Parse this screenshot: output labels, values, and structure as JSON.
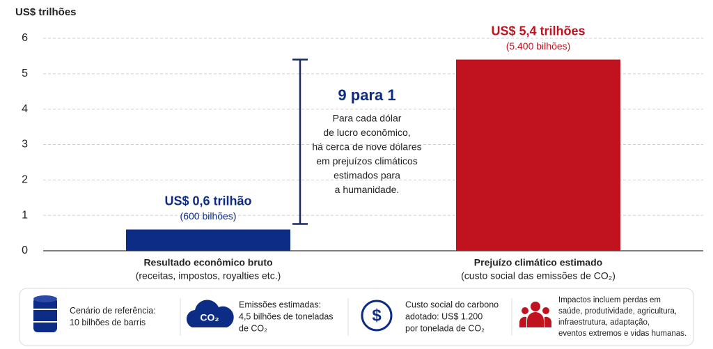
{
  "chart_data": {
    "type": "bar",
    "y_label": "US$ trilhões",
    "categories": [
      "Resultado econômico bruto",
      "Prejuízo climático estimado"
    ],
    "category_notes": [
      "(receitas, impostos, royalties etc.)",
      "(custo social das emissões de CO₂)"
    ],
    "values": [
      0.6,
      5.4
    ],
    "value_labels": [
      "US$ 0,6 trilhão",
      "US$ 5,4 trilhões"
    ],
    "value_sublabels": [
      "(600 bilhões)",
      "(5.400 bilhões)"
    ],
    "colors": [
      "#0d2c85",
      "#c1121f"
    ],
    "ylim": [
      0,
      6
    ],
    "yticks": [
      0,
      1,
      2,
      3,
      4,
      5,
      6
    ],
    "grid": true,
    "annotation": {
      "title": "9 para 1",
      "lines": [
        "Para cada dólar",
        "de lucro econômico,",
        "há cerca de nove dólares",
        "em prejuízos climáticos",
        "estimados para",
        "a humanidade."
      ]
    }
  },
  "footer": {
    "items": [
      {
        "lines": [
          "Cenário de referência:",
          "10 bilhões de barris"
        ]
      },
      {
        "icon_text": "CO₂",
        "lines": [
          "Emissões estimadas:",
          "4,5 bilhões de toneladas",
          "de CO₂"
        ]
      },
      {
        "icon_text": "$",
        "lines": [
          "Custo social do carbono",
          "adotado: US$ 1.200",
          "por tonelada de CO₂"
        ]
      },
      {
        "lines": [
          "Impactos incluem perdas em",
          "saúde, produtividade, agricultura,",
          "infraestrutura, adaptação,",
          "eventos extremos e vidas humanas."
        ]
      }
    ]
  }
}
